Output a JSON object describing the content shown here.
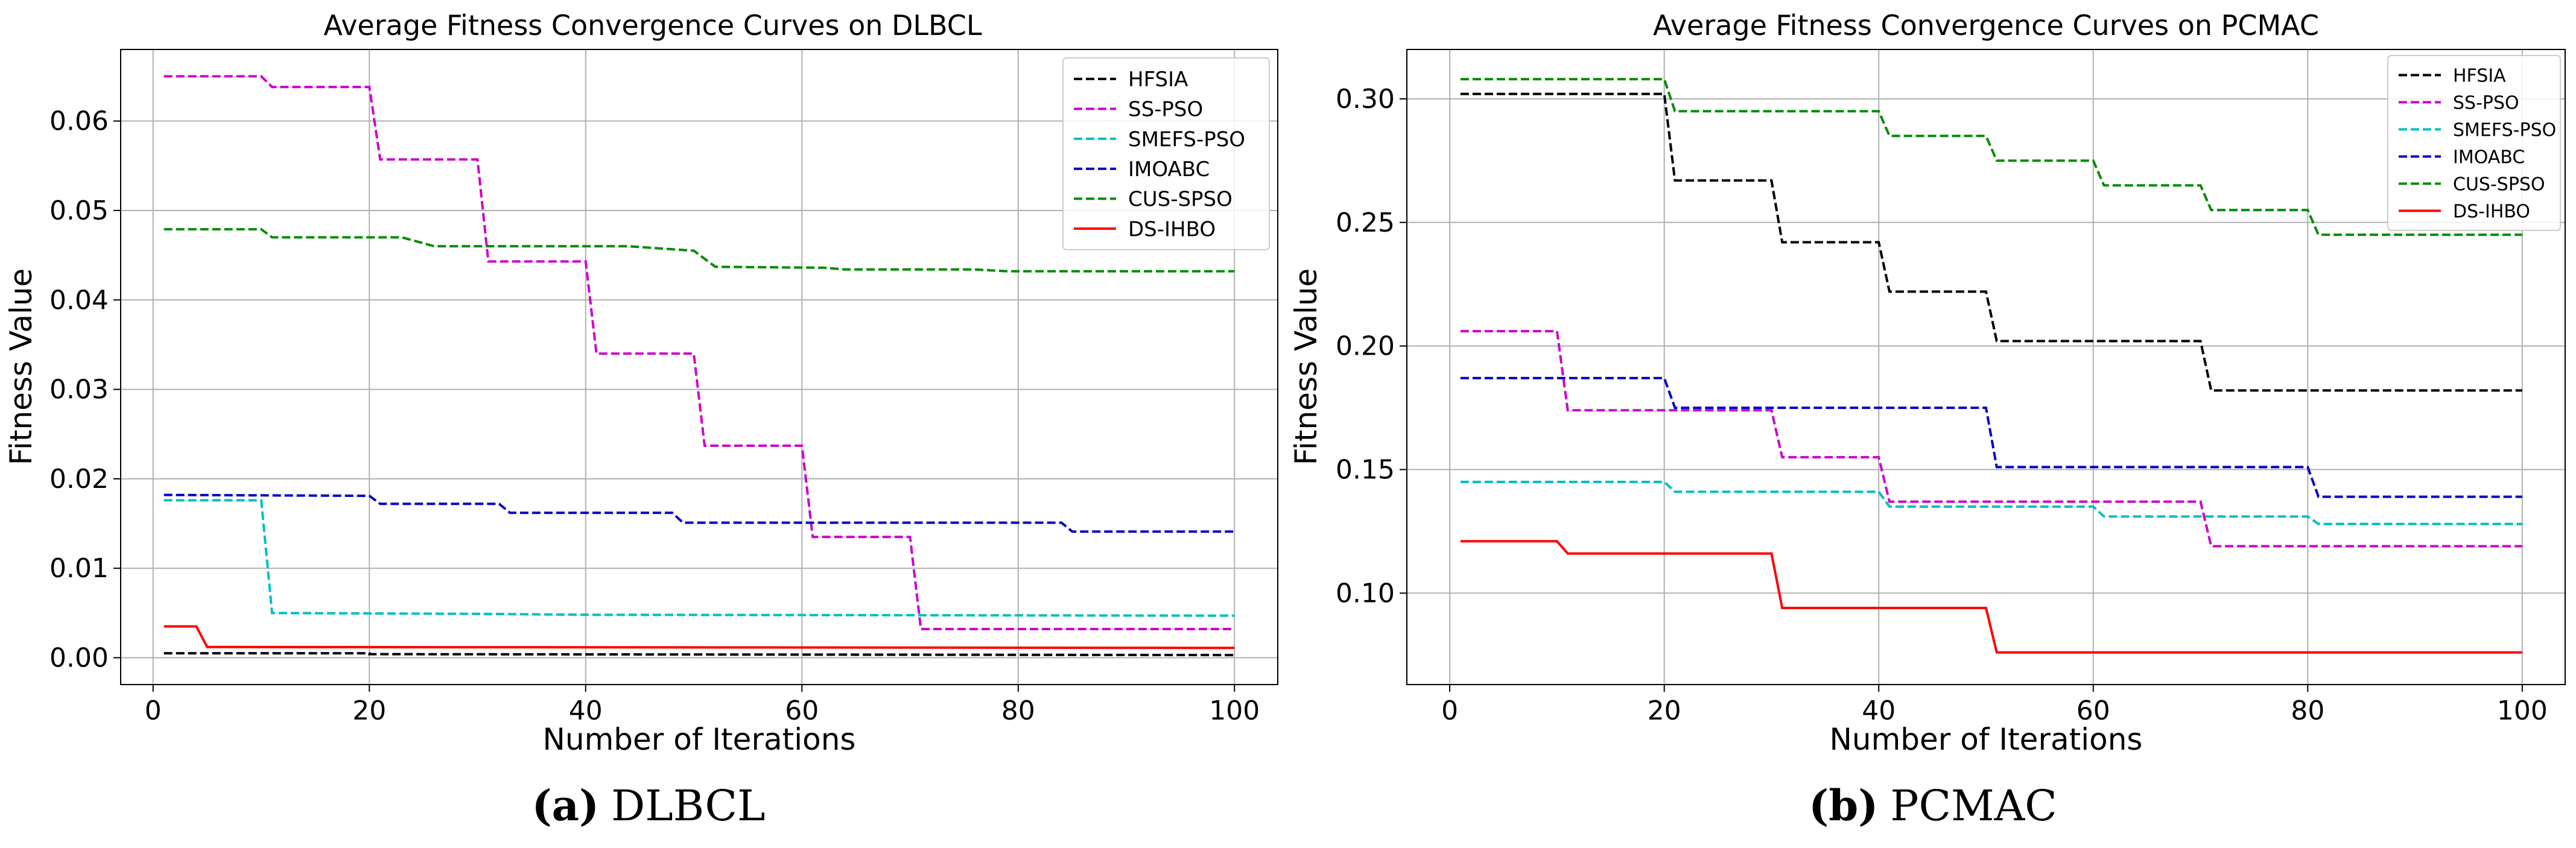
{
  "chart_data": [
    {
      "type": "line",
      "title": "Average Fitness Convergence Curves on DLBCL",
      "xlabel": "Number of Iterations",
      "ylabel": "Fitness Value",
      "xlim": [
        -3,
        104
      ],
      "ylim": [
        -0.003,
        0.068
      ],
      "xticks": [
        0,
        20,
        40,
        60,
        80,
        100
      ],
      "yticks": [
        0.0,
        0.01,
        0.02,
        0.03,
        0.04,
        0.05,
        0.06
      ],
      "ytick_labels": [
        "0.00",
        "0.01",
        "0.02",
        "0.03",
        "0.04",
        "0.05",
        "0.06"
      ],
      "grid": true,
      "legend_position": "top-right",
      "caption": {
        "letter": "(a)",
        "name": "DLBCL"
      },
      "series": [
        {
          "name": "HFSIA",
          "color": "#000000",
          "dash": "dashed",
          "points": [
            [
              1,
              0.0005
            ],
            [
              20,
              0.0005
            ],
            [
              20,
              0.0004
            ],
            [
              100,
              0.0003
            ]
          ]
        },
        {
          "name": "SS-PSO",
          "color": "#cc00cc",
          "dash": "dashed",
          "points": [
            [
              1,
              0.065
            ],
            [
              10,
              0.065
            ],
            [
              11,
              0.0638
            ],
            [
              20,
              0.0638
            ],
            [
              21,
              0.0557
            ],
            [
              30,
              0.0557
            ],
            [
              31,
              0.0443
            ],
            [
              40,
              0.0443
            ],
            [
              41,
              0.034
            ],
            [
              50,
              0.034
            ],
            [
              51,
              0.0237
            ],
            [
              60,
              0.0237
            ],
            [
              61,
              0.0135
            ],
            [
              70,
              0.0135
            ],
            [
              71,
              0.0032
            ],
            [
              100,
              0.0032
            ]
          ]
        },
        {
          "name": "SMEFS-PSO",
          "color": "#00bfbf",
          "dash": "dashed",
          "points": [
            [
              1,
              0.0176
            ],
            [
              10,
              0.0176
            ],
            [
              11,
              0.005
            ],
            [
              30,
              0.0049
            ],
            [
              40,
              0.0048
            ],
            [
              100,
              0.0047
            ]
          ]
        },
        {
          "name": "IMOABC",
          "color": "#0000cc",
          "dash": "dashed",
          "points": [
            [
              1,
              0.0182
            ],
            [
              20,
              0.0181
            ],
            [
              21,
              0.0172
            ],
            [
              32,
              0.0172
            ],
            [
              33,
              0.0162
            ],
            [
              48,
              0.0162
            ],
            [
              49,
              0.0151
            ],
            [
              84,
              0.0151
            ],
            [
              85,
              0.0141
            ],
            [
              100,
              0.0141
            ]
          ]
        },
        {
          "name": "CUS-SPSO",
          "color": "#008c00",
          "dash": "dashed",
          "points": [
            [
              1,
              0.0479
            ],
            [
              10,
              0.0479
            ],
            [
              11,
              0.047
            ],
            [
              23,
              0.047
            ],
            [
              26,
              0.046
            ],
            [
              44,
              0.046
            ],
            [
              50,
              0.0455
            ],
            [
              52,
              0.0437
            ],
            [
              62,
              0.0436
            ],
            [
              64,
              0.0434
            ],
            [
              76,
              0.0434
            ],
            [
              79,
              0.0432
            ],
            [
              100,
              0.0432
            ]
          ]
        },
        {
          "name": "DS-IHBO",
          "color": "#ff0000",
          "dash": "solid",
          "points": [
            [
              1,
              0.0035
            ],
            [
              4,
              0.0035
            ],
            [
              5,
              0.0012
            ],
            [
              100,
              0.0011
            ]
          ]
        }
      ]
    },
    {
      "type": "line",
      "title": "Average Fitness Convergence Curves on PCMAC",
      "xlabel": "Number of Iterations",
      "ylabel": "Fitness Value",
      "xlim": [
        -4,
        104
      ],
      "ylim": [
        0.063,
        0.32
      ],
      "xticks": [
        0,
        20,
        40,
        60,
        80,
        100
      ],
      "yticks": [
        0.1,
        0.15,
        0.2,
        0.25,
        0.3
      ],
      "ytick_labels": [
        "0.10",
        "0.15",
        "0.20",
        "0.25",
        "0.30"
      ],
      "grid": true,
      "legend_position": "top-right",
      "caption": {
        "letter": "(b)",
        "name": "PCMAC"
      },
      "series": [
        {
          "name": "HFSIA",
          "color": "#000000",
          "dash": "dashed",
          "points": [
            [
              1,
              0.302
            ],
            [
              20,
              0.302
            ],
            [
              21,
              0.267
            ],
            [
              30,
              0.267
            ],
            [
              31,
              0.242
            ],
            [
              40,
              0.242
            ],
            [
              41,
              0.222
            ],
            [
              50,
              0.222
            ],
            [
              51,
              0.202
            ],
            [
              70,
              0.202
            ],
            [
              71,
              0.182
            ],
            [
              100,
              0.182
            ]
          ]
        },
        {
          "name": "SS-PSO",
          "color": "#cc00cc",
          "dash": "dashed",
          "points": [
            [
              1,
              0.206
            ],
            [
              10,
              0.206
            ],
            [
              11,
              0.174
            ],
            [
              30,
              0.174
            ],
            [
              31,
              0.155
            ],
            [
              40,
              0.155
            ],
            [
              41,
              0.137
            ],
            [
              70,
              0.137
            ],
            [
              71,
              0.119
            ],
            [
              100,
              0.119
            ]
          ]
        },
        {
          "name": "SMEFS-PSO",
          "color": "#00bfbf",
          "dash": "dashed",
          "points": [
            [
              1,
              0.145
            ],
            [
              20,
              0.145
            ],
            [
              21,
              0.141
            ],
            [
              40,
              0.141
            ],
            [
              41,
              0.135
            ],
            [
              60,
              0.135
            ],
            [
              61,
              0.131
            ],
            [
              80,
              0.131
            ],
            [
              81,
              0.128
            ],
            [
              100,
              0.128
            ]
          ]
        },
        {
          "name": "IMOABC",
          "color": "#0000cc",
          "dash": "dashed",
          "points": [
            [
              1,
              0.187
            ],
            [
              20,
              0.187
            ],
            [
              21,
              0.175
            ],
            [
              50,
              0.175
            ],
            [
              51,
              0.151
            ],
            [
              80,
              0.151
            ],
            [
              81,
              0.139
            ],
            [
              100,
              0.139
            ]
          ]
        },
        {
          "name": "CUS-SPSO",
          "color": "#008c00",
          "dash": "dashed",
          "points": [
            [
              1,
              0.308
            ],
            [
              20,
              0.308
            ],
            [
              21,
              0.295
            ],
            [
              40,
              0.295
            ],
            [
              41,
              0.285
            ],
            [
              50,
              0.285
            ],
            [
              51,
              0.275
            ],
            [
              60,
              0.275
            ],
            [
              61,
              0.265
            ],
            [
              70,
              0.265
            ],
            [
              71,
              0.255
            ],
            [
              80,
              0.255
            ],
            [
              81,
              0.245
            ],
            [
              100,
              0.245
            ]
          ]
        },
        {
          "name": "DS-IHBO",
          "color": "#ff0000",
          "dash": "solid",
          "points": [
            [
              1,
              0.121
            ],
            [
              10,
              0.121
            ],
            [
              11,
              0.116
            ],
            [
              30,
              0.116
            ],
            [
              31,
              0.094
            ],
            [
              50,
              0.094
            ],
            [
              51,
              0.076
            ],
            [
              100,
              0.076
            ]
          ]
        }
      ]
    }
  ]
}
